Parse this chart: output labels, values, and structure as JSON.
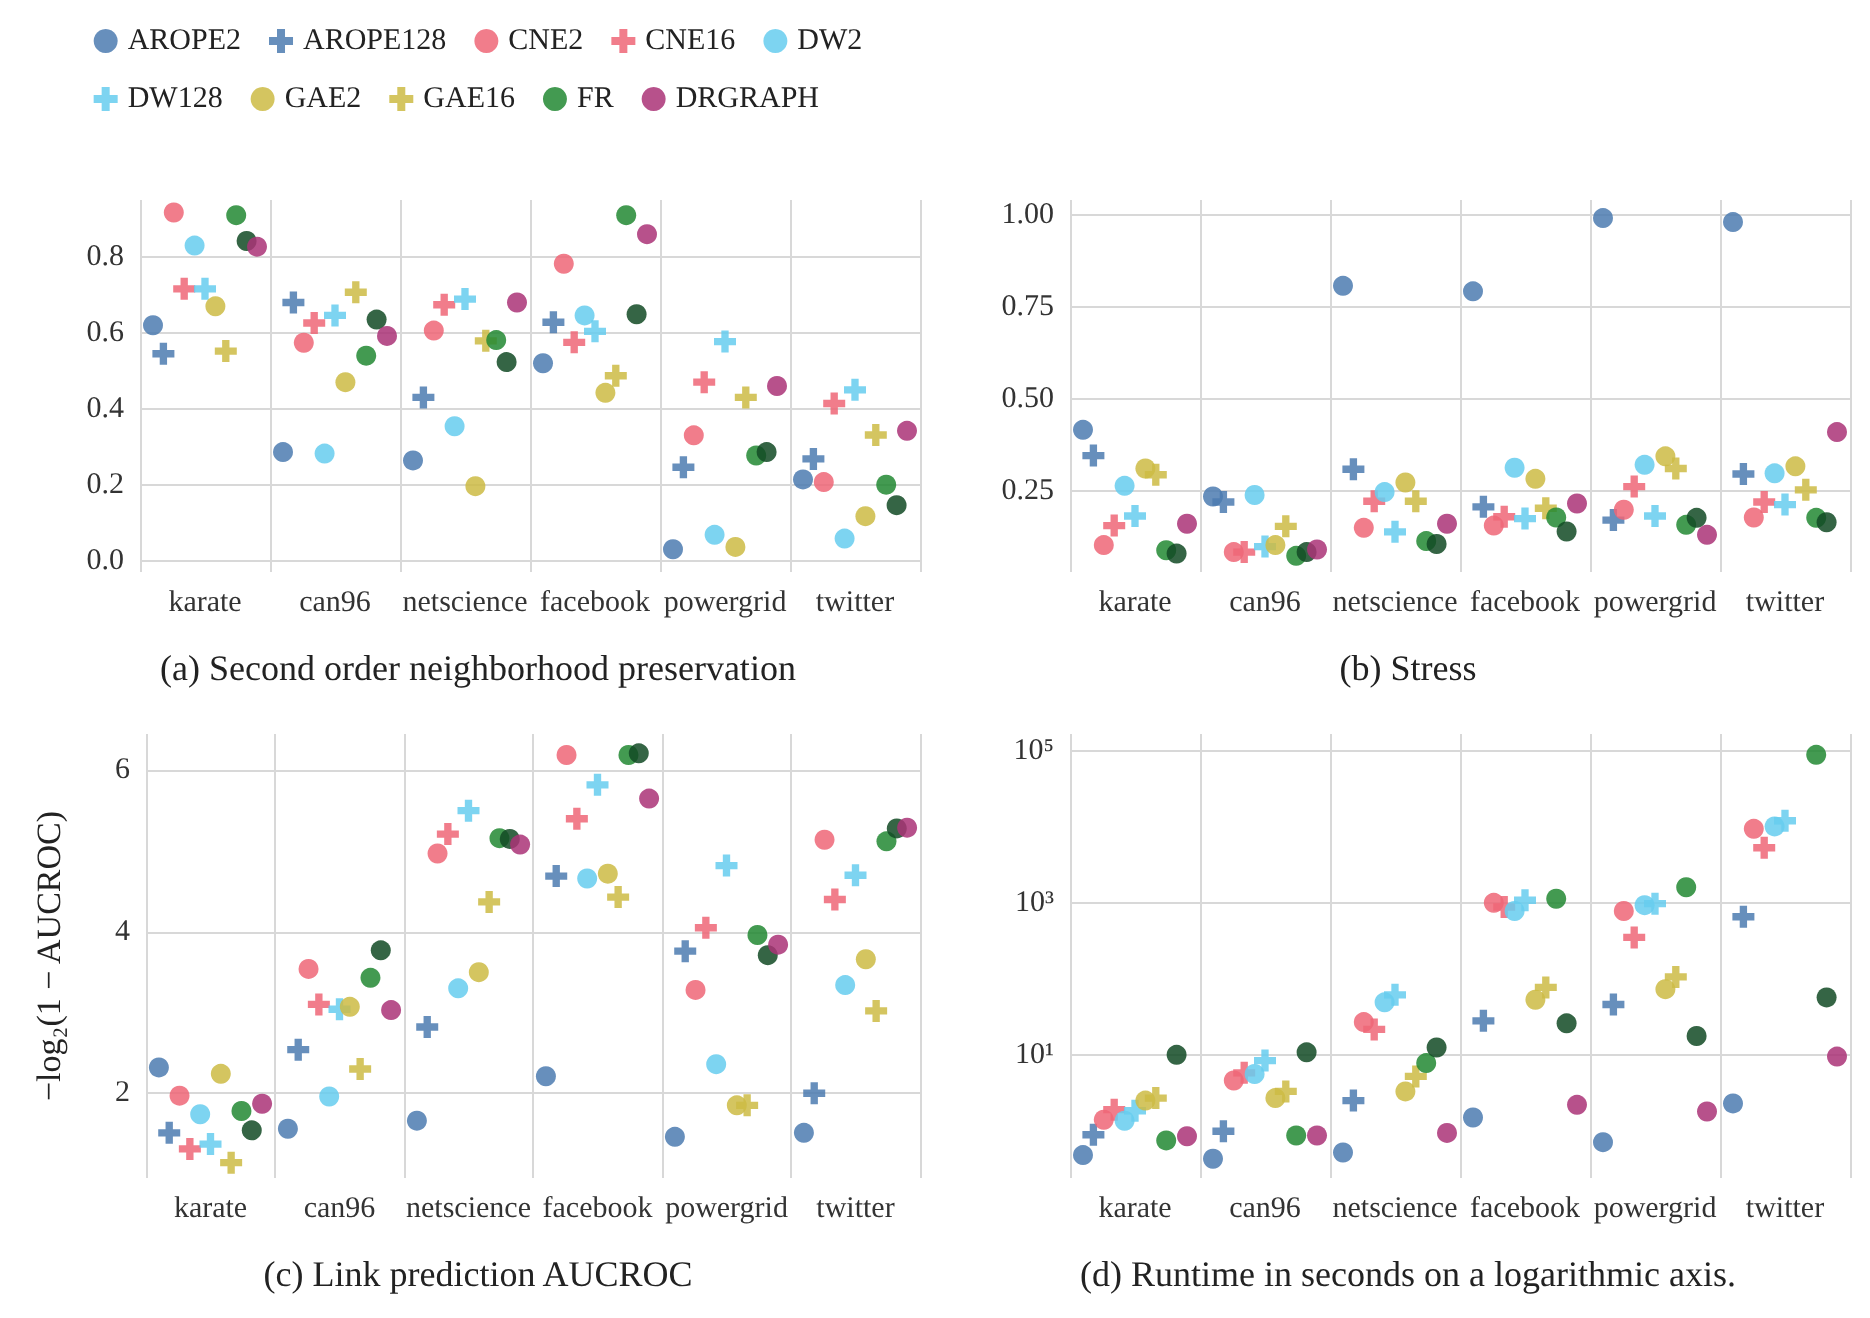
{
  "chart_data": [
    {
      "type": "scatter",
      "title": "(a) Second order neighborhood preservation",
      "categories": [
        "karate",
        "can96",
        "netscience",
        "facebook",
        "powergrid",
        "twitter"
      ],
      "ylim": [
        -0.03,
        0.95
      ],
      "yticks": [
        {
          "value": 0,
          "label": "0.0"
        },
        0.2,
        0.4,
        0.6,
        0.8
      ],
      "grid": true,
      "legend": "top",
      "series": [
        {
          "name": "AROPE2",
          "color": "#4c7bb0",
          "marker": "circle",
          "values": [
            0.62,
            0.286,
            0.264,
            0.52,
            0.03,
            0.214
          ]
        },
        {
          "name": "AROPE128",
          "color": "#4c7bb0",
          "marker": "cross",
          "values": [
            0.545,
            0.68,
            0.43,
            0.628,
            0.246,
            0.268
          ]
        },
        {
          "name": "CNE2",
          "color": "#ee6677",
          "marker": "circle",
          "values": [
            0.917,
            0.574,
            0.606,
            0.782,
            0.33,
            0.207
          ]
        },
        {
          "name": "CNE16",
          "color": "#ee6677",
          "marker": "cross",
          "values": [
            0.716,
            0.626,
            0.674,
            0.575,
            0.47,
            0.414
          ]
        },
        {
          "name": "DW2",
          "color": "#66ccee",
          "marker": "circle",
          "values": [
            0.83,
            0.282,
            0.354,
            0.646,
            0.068,
            0.058
          ]
        },
        {
          "name": "DW128",
          "color": "#66ccee",
          "marker": "cross",
          "values": [
            0.716,
            0.646,
            0.689,
            0.604,
            0.577,
            0.45
          ]
        },
        {
          "name": "GAE2",
          "color": "#ccbb44",
          "marker": "circle",
          "values": [
            0.67,
            0.47,
            0.196,
            0.442,
            0.036,
            0.117
          ]
        },
        {
          "name": "GAE16",
          "color": "#ccbb44",
          "marker": "cross",
          "values": [
            0.552,
            0.707,
            0.579,
            0.487,
            0.43,
            0.331
          ]
        },
        {
          "name": "FR",
          "color": "#228833",
          "marker": "circle",
          "values": [
            0.91,
            0.54,
            0.581,
            0.91,
            0.277,
            0.2
          ]
        },
        {
          "color": "#124a24",
          "marker": "circle",
          "values": [
            0.842,
            0.635,
            0.523,
            0.649,
            0.286,
            0.146
          ]
        },
        {
          "name": "DRGRAPH",
          "color": "#aa3377",
          "marker": "circle",
          "values": [
            0.827,
            0.592,
            0.68,
            0.86,
            0.46,
            0.342
          ]
        }
      ]
    },
    {
      "type": "scatter",
      "title": "(b) Stress",
      "categories": [
        "karate",
        "can96",
        "netscience",
        "facebook",
        "powergrid",
        "twitter"
      ],
      "ylim": [
        0.03,
        1.04
      ],
      "yticks": [
        {
          "value": 0.25,
          "label": "0.25"
        },
        {
          "value": 0.5,
          "label": "0.50"
        },
        {
          "value": 0.75,
          "label": "0.75"
        },
        {
          "value": 1,
          "label": "1.00"
        }
      ],
      "grid": true,
      "series": [
        {
          "color": "#4c7bb0",
          "marker": "circle",
          "values": [
            0.416,
            0.235,
            0.807,
            0.792,
            0.991,
            0.98
          ]
        },
        {
          "color": "#4c7bb0",
          "marker": "cross",
          "values": [
            0.346,
            0.22,
            0.309,
            0.207,
            0.171,
            0.296
          ]
        },
        {
          "color": "#ee6677",
          "marker": "circle",
          "values": [
            0.103,
            0.084,
            0.15,
            0.156,
            0.199,
            0.178
          ]
        },
        {
          "color": "#ee6677",
          "marker": "cross",
          "values": [
            0.156,
            0.084,
            0.222,
            0.18,
            0.262,
            0.22
          ]
        },
        {
          "color": "#66ccee",
          "marker": "circle",
          "values": [
            0.264,
            0.239,
            0.247,
            0.313,
            0.321,
            0.298
          ]
        },
        {
          "color": "#66ccee",
          "marker": "cross",
          "values": [
            0.182,
            0.099,
            0.139,
            0.175,
            0.182,
            0.213
          ]
        },
        {
          "color": "#ccbb44",
          "marker": "circle",
          "values": [
            0.311,
            0.103,
            0.273,
            0.283,
            0.344,
            0.317
          ]
        },
        {
          "color": "#ccbb44",
          "marker": "cross",
          "values": [
            0.294,
            0.154,
            0.222,
            0.203,
            0.311,
            0.253
          ]
        },
        {
          "color": "#228833",
          "marker": "circle",
          "values": [
            0.089,
            0.074,
            0.114,
            0.178,
            0.158,
            0.177
          ]
        },
        {
          "color": "#124a24",
          "marker": "circle",
          "values": [
            0.08,
            0.084,
            0.106,
            0.14,
            0.177,
            0.165
          ]
        },
        {
          "color": "#aa3377",
          "marker": "circle",
          "values": [
            0.161,
            0.091,
            0.161,
            0.216,
            0.131,
            0.41
          ]
        }
      ]
    },
    {
      "type": "scatter",
      "title": "(c) Link prediction AUCROC",
      "ylabel": "−log₂(1 − AUCROC)",
      "categories": [
        "karate",
        "can96",
        "netscience",
        "facebook",
        "powergrid",
        "twitter"
      ],
      "ylim": [
        0.95,
        6.45
      ],
      "yticks": [
        2,
        4,
        6
      ],
      "grid": true,
      "series": [
        {
          "color": "#4c7bb0",
          "marker": "circle",
          "values": [
            2.32,
            1.56,
            1.66,
            2.21,
            1.46,
            1.51
          ]
        },
        {
          "color": "#4c7bb0",
          "marker": "cross",
          "values": [
            1.51,
            2.54,
            2.82,
            4.69,
            3.76,
            2.0
          ]
        },
        {
          "color": "#ee6677",
          "marker": "circle",
          "values": [
            1.97,
            3.54,
            4.97,
            6.19,
            3.28,
            5.14
          ]
        },
        {
          "color": "#ee6677",
          "marker": "cross",
          "values": [
            1.31,
            3.1,
            5.21,
            5.4,
            4.05,
            4.4
          ]
        },
        {
          "color": "#66ccee",
          "marker": "circle",
          "values": [
            1.74,
            1.96,
            3.3,
            4.66,
            2.36,
            3.34
          ]
        },
        {
          "color": "#66ccee",
          "marker": "cross",
          "values": [
            1.37,
            3.04,
            5.5,
            5.82,
            4.82,
            4.7
          ]
        },
        {
          "color": "#ccbb44",
          "marker": "circle",
          "values": [
            2.24,
            3.07,
            3.5,
            4.72,
            1.85,
            3.66
          ]
        },
        {
          "color": "#ccbb44",
          "marker": "cross",
          "values": [
            1.14,
            2.3,
            4.37,
            4.43,
            1.85,
            3.02
          ]
        },
        {
          "color": "#228833",
          "marker": "circle",
          "values": [
            1.78,
            3.43,
            5.16,
            6.19,
            3.96,
            5.12
          ]
        },
        {
          "color": "#124a24",
          "marker": "circle",
          "values": [
            1.54,
            3.77,
            5.15,
            6.21,
            3.71,
            5.28
          ]
        },
        {
          "color": "#aa3377",
          "marker": "circle",
          "values": [
            1.87,
            3.03,
            5.08,
            5.65,
            3.84,
            5.29
          ]
        }
      ]
    },
    {
      "type": "scatter",
      "title": "(d) Runtime in seconds on a logarithmic axis.",
      "categories": [
        "karate",
        "can96",
        "netscience",
        "facebook",
        "powergrid",
        "twitter"
      ],
      "ylim": [
        0.24,
        166000
      ],
      "yticks": [
        {
          "value": 10,
          "label": "10¹"
        },
        {
          "value": 1000,
          "label": "10³"
        },
        {
          "value": 100000,
          "label": "10⁵"
        }
      ],
      "log": true,
      "grid": true,
      "series": [
        {
          "color": "#4c7bb0",
          "marker": "circle",
          "values": [
            0.48,
            0.43,
            0.52,
            1.5,
            0.71,
            2.3
          ]
        },
        {
          "color": "#4c7bb0",
          "marker": "cross",
          "values": [
            0.89,
            0.99,
            2.5,
            28,
            46,
            655
          ]
        },
        {
          "color": "#ee6677",
          "marker": "circle",
          "values": [
            1.4,
            4.6,
            27,
            1000,
            780,
            9400
          ]
        },
        {
          "color": "#ee6677",
          "marker": "cross",
          "values": [
            1.9,
            5.8,
            21.6,
            880,
            350,
            5300
          ]
        },
        {
          "color": "#66ccee",
          "marker": "circle",
          "values": [
            1.36,
            5.6,
            49,
            780,
            930,
            10100
          ]
        },
        {
          "color": "#66ccee",
          "marker": "cross",
          "values": [
            1.84,
            8.4,
            61.5,
            1080,
            975,
            12000
          ]
        },
        {
          "color": "#ccbb44",
          "marker": "circle",
          "values": [
            2.5,
            2.7,
            3.3,
            53,
            73,
            null
          ]
        },
        {
          "color": "#ccbb44",
          "marker": "cross",
          "values": [
            2.7,
            3.3,
            5.2,
            77,
            106,
            null
          ]
        },
        {
          "color": "#228833",
          "marker": "circle",
          "values": [
            0.75,
            0.87,
            7.8,
            1130,
            1600,
            88300
          ]
        },
        {
          "color": "#124a24",
          "marker": "circle",
          "values": [
            10,
            10.8,
            12.5,
            26,
            17.7,
            57
          ]
        },
        {
          "color": "#aa3377",
          "marker": "circle",
          "values": [
            0.85,
            0.87,
            0.94,
            2.2,
            1.8,
            9.5
          ]
        }
      ]
    }
  ]
}
